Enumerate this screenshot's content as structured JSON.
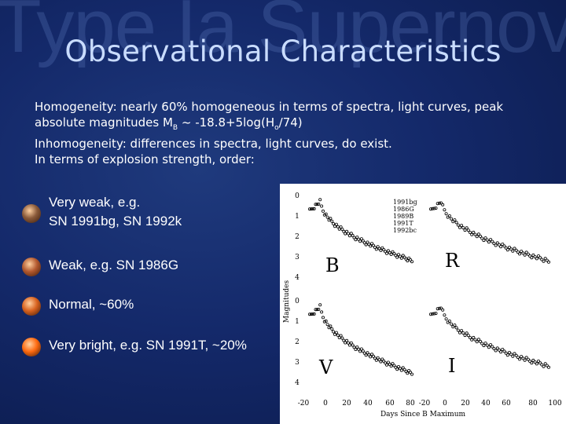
{
  "watermark": "Type Ia Supernovae",
  "title": "Observational Characteristics",
  "paragraph": {
    "line1": "Homogeneity: nearly 60% homogeneous in terms of spectra, light curves, peak",
    "line2_pre": "absolute magnitudes M",
    "line2_sub1": "B",
    "line2_mid": " ~ -18.8+5log(H",
    "line2_sub2": "o",
    "line2_post": "/74)",
    "line3": "Inhomogeneity:  differences in spectra, light curves, do exist.",
    "line4": "In terms of explosion strength, order:"
  },
  "list": [
    {
      "line1": "Very weak, e.g.",
      "line2": "SN 1991bg, SN 1992k",
      "color": "#8a5a3a"
    },
    {
      "line1": "Weak, e.g. SN 1986G",
      "line2": "",
      "color": "#b3592f"
    },
    {
      "line1": "Normal, ~60%",
      "line2": "",
      "color": "#d8621f"
    },
    {
      "line1": "Very bright, e.g. SN 1991T, ~20%",
      "line2": "",
      "color": "#ff6a10"
    }
  ],
  "figure": {
    "ylabel": "Magnitudes",
    "xlabel": "Days Since B Maximum",
    "panels": [
      "B",
      "R",
      "V",
      "I"
    ],
    "legend": [
      "1991bg",
      "1986G",
      "1989B",
      "1991T",
      "1992bc"
    ],
    "y_ticks_top": [
      "0",
      "1",
      "2",
      "3",
      "4"
    ],
    "y_ticks_bottom": [
      "0",
      "1",
      "2",
      "3",
      "4"
    ],
    "x_ticks_left": [
      "-20",
      "0",
      "20",
      "40",
      "60",
      "80"
    ],
    "x_ticks_right": [
      "-20",
      "0",
      "20",
      "40",
      "60",
      "80",
      "100"
    ]
  }
}
